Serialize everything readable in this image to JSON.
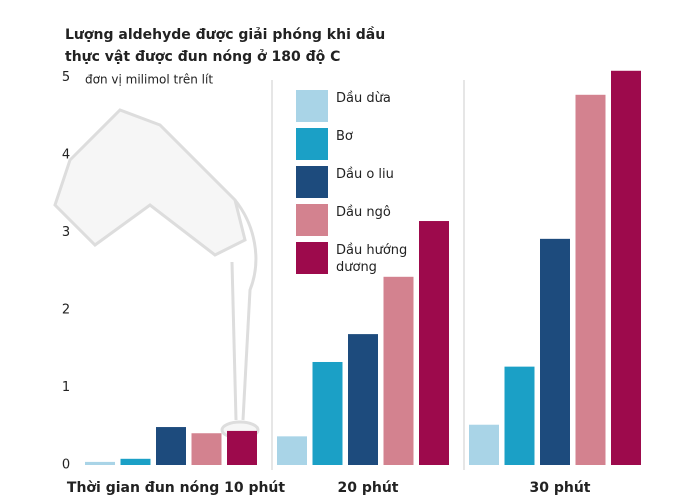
{
  "chart_data": {
    "type": "grouped-bar",
    "title": [
      "Lượng aldehyde được giải phóng khi dầu",
      "thực vật được đun nóng ở 180 độ C"
    ],
    "subtitle": "đơn vị milimol trên lít",
    "categories": [
      "Thời gian đun nóng 10 phút",
      "20 phút",
      "30 phút"
    ],
    "series": [
      {
        "name": "Dầu dừa",
        "color": "#a9d4e7",
        "values": [
          0.04,
          0.37,
          0.52
        ]
      },
      {
        "name": "Bơ",
        "color": "#1ba0c6",
        "values": [
          0.08,
          1.33,
          1.27
        ]
      },
      {
        "name": "Dầu o liu",
        "color": "#1d4b7d",
        "values": [
          0.49,
          1.69,
          2.92
        ]
      },
      {
        "name": "Dầu ngô",
        "color": "#d3828f",
        "values": [
          0.41,
          2.43,
          4.78
        ]
      },
      {
        "name": "Dầu hướng dương",
        "color": "#9d0a4c",
        "values": [
          0.44,
          3.15,
          5.09
        ]
      }
    ],
    "ylim": [
      0,
      5.1
    ],
    "yticks": [
      0,
      1,
      2,
      3,
      4,
      5
    ],
    "grid": false
  }
}
